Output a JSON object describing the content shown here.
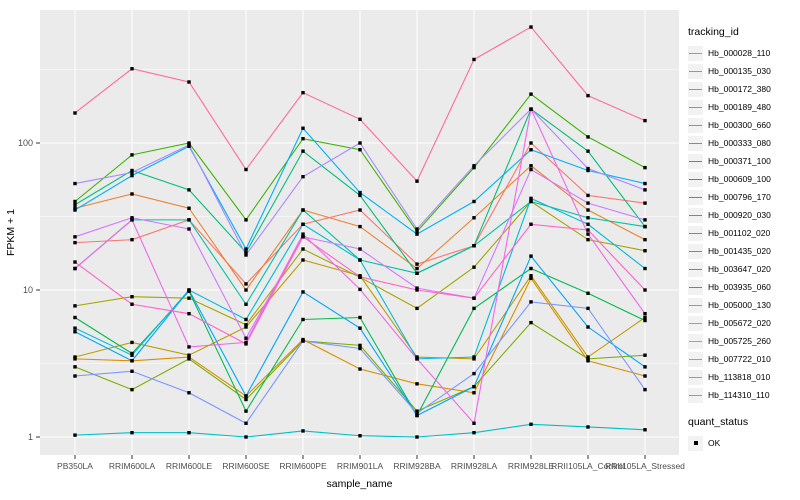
{
  "figure": {
    "x_axis_title": "sample_name",
    "y_axis_title": "FPKM + 1",
    "legend_title": "tracking_id",
    "quant_legend_title": "quant_status",
    "quant_legend_label": "OK"
  },
  "colors": {
    "panel_bg": "#EBEBEB",
    "grid": "#FFFFFF",
    "tick_text": "#4D4D4D",
    "axis_title_text": "#000000",
    "marker": "#000000",
    "legend_key_bg": "#F2F2F2"
  },
  "chart_data": {
    "type": "line",
    "title": "",
    "xlabel": "sample_name",
    "ylabel": "FPKM + 1",
    "y_scale": "log10",
    "ylim": [
      0.75,
      800
    ],
    "y_ticks": [
      1,
      10,
      100
    ],
    "y_minor_ticks": [
      3.162,
      31.62,
      316.2
    ],
    "grid": true,
    "legend_position": "right",
    "point_marker": "black-square",
    "quant_status": "OK",
    "categories": [
      "PB350LA",
      "RRIM600LA",
      "RRIM600LE",
      "RRIM600SE",
      "RRIM600PE",
      "RRIM901LA",
      "RRIM928BA",
      "RRIM928LA",
      "RRIM928LE",
      "RRII105LA_Control",
      "RRII105LA_Stressed"
    ],
    "series": [
      {
        "name": "Hb_000028_110",
        "color": "#F8766D",
        "values": [
          21,
          22,
          30,
          11,
          28,
          35,
          15,
          20,
          100,
          44,
          39
        ]
      },
      {
        "name": "Hb_000135_030",
        "color": "#EA8331",
        "values": [
          36,
          45,
          36,
          10,
          35,
          27,
          14,
          31,
          70,
          35,
          22
        ]
      },
      {
        "name": "Hb_000172_380",
        "color": "#D89000",
        "values": [
          3.4,
          3.3,
          3.5,
          1.9,
          4.6,
          2.9,
          2.3,
          2.0,
          12,
          3.3,
          2.6
        ]
      },
      {
        "name": "Hb_000189_480",
        "color": "#C09B00",
        "values": [
          3.5,
          4.4,
          3.6,
          5.6,
          16,
          12.5,
          3.5,
          3.4,
          12.5,
          3.5,
          6.5
        ]
      },
      {
        "name": "Hb_000300_660",
        "color": "#A3A500",
        "values": [
          7.8,
          9.0,
          8.8,
          5.8,
          19,
          12.2,
          7.5,
          14.3,
          40,
          22,
          18.5
        ]
      },
      {
        "name": "Hb_000333_080",
        "color": "#7CAE00",
        "values": [
          3.0,
          2.1,
          3.4,
          1.8,
          4.5,
          4.2,
          1.5,
          2.2,
          6.0,
          3.4,
          3.6
        ]
      },
      {
        "name": "Hb_000371_100",
        "color": "#39B600",
        "values": [
          40,
          83,
          100,
          30,
          107,
          90,
          25,
          68,
          215,
          110,
          68
        ]
      },
      {
        "name": "Hb_000609_100",
        "color": "#00BB4E",
        "values": [
          6.5,
          3.7,
          9.8,
          1.5,
          6.3,
          6.5,
          1.4,
          7.5,
          14,
          9.5,
          6.2
        ]
      },
      {
        "name": "Hb_000796_170",
        "color": "#00BF7D",
        "values": [
          38,
          65,
          48,
          18,
          88,
          44,
          13,
          20,
          170,
          88,
          27
        ]
      },
      {
        "name": "Hb_000920_030",
        "color": "#00C1A3",
        "values": [
          14,
          30,
          30,
          8,
          35,
          16,
          13,
          20,
          40,
          31,
          27
        ]
      },
      {
        "name": "Hb_001102_020",
        "color": "#00BFC4",
        "values": [
          1.03,
          1.07,
          1.07,
          1.0,
          1.1,
          1.02,
          1.0,
          1.07,
          1.22,
          1.17,
          1.12
        ]
      },
      {
        "name": "Hb_001435_020",
        "color": "#00BBDA",
        "values": [
          5.5,
          3.6,
          10,
          6.3,
          28,
          16,
          3.4,
          3.5,
          42,
          28,
          14
        ]
      },
      {
        "name": "Hb_003647_020",
        "color": "#00B0F6",
        "values": [
          35,
          60,
          95,
          19,
          126,
          46,
          24,
          40,
          90,
          65,
          53
        ]
      },
      {
        "name": "Hb_003935_060",
        "color": "#00A5FF",
        "values": [
          5.2,
          3.3,
          10,
          1.9,
          9.7,
          5.5,
          1.4,
          2.2,
          17,
          5.6,
          3.0
        ]
      },
      {
        "name": "Hb_005000_130",
        "color": "#7997FF",
        "values": [
          2.6,
          2.8,
          2.0,
          1.24,
          4.5,
          4.0,
          1.45,
          2.7,
          8.3,
          7.5,
          2.1
        ]
      },
      {
        "name": "Hb_005672_020",
        "color": "#AC88FF",
        "values": [
          53,
          63,
          97,
          17.3,
          59,
          100,
          26,
          70,
          170,
          67,
          48
        ]
      },
      {
        "name": "Hb_005725_260",
        "color": "#D277FF",
        "values": [
          23,
          31,
          26,
          4.7,
          23,
          19,
          10.3,
          8.8,
          66,
          39,
          30
        ]
      },
      {
        "name": "Hb_007722_010",
        "color": "#EF67EB",
        "values": [
          14,
          30,
          4.1,
          4.4,
          24,
          10.1,
          3.4,
          1.24,
          170,
          24,
          6.9
        ]
      },
      {
        "name": "Hb_113818_010",
        "color": "#FF61C9",
        "values": [
          15.5,
          8.0,
          6.9,
          4.3,
          23,
          12.3,
          10,
          8.8,
          28,
          25.6,
          10
        ]
      },
      {
        "name": "Hb_114310_110",
        "color": "#FF689E",
        "values": [
          160,
          320,
          260,
          66,
          220,
          145,
          55,
          370,
          615,
          210,
          142
        ]
      }
    ]
  }
}
